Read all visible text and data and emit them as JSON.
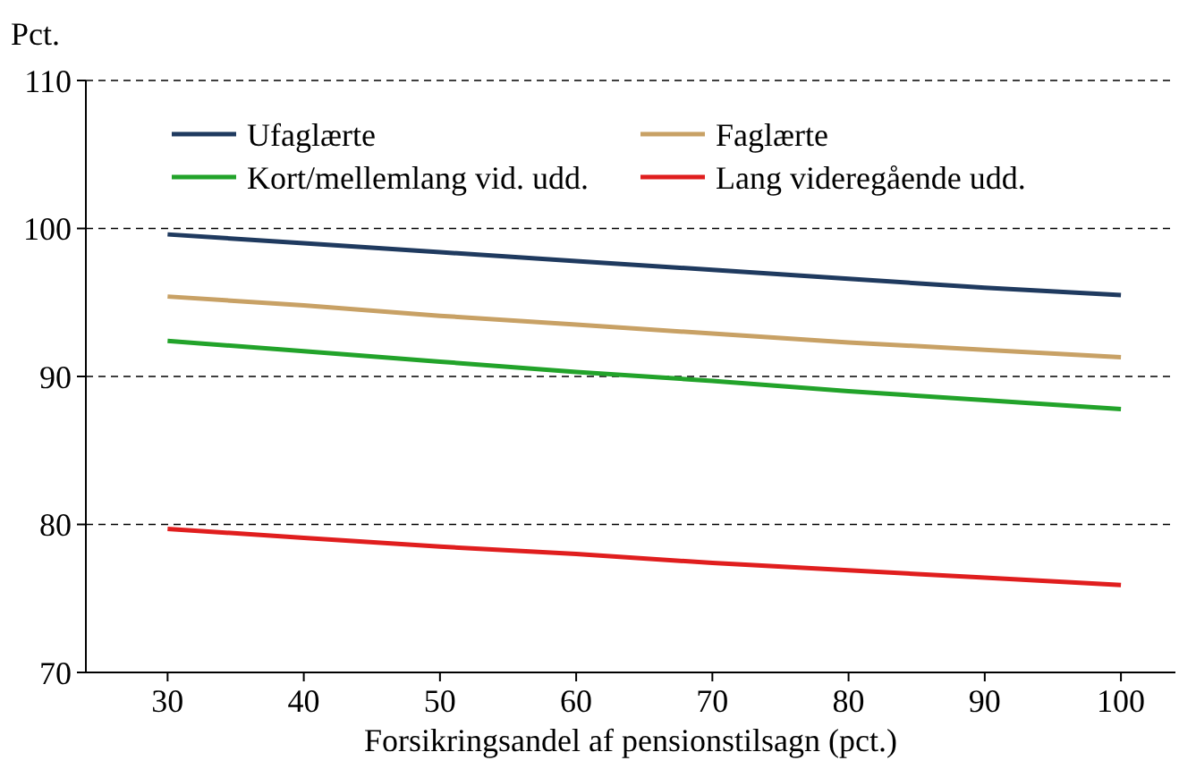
{
  "chart_data": {
    "type": "line",
    "ylabel": "Pct.",
    "xlabel": "Forsikringsandel af pensionstilsagn (pct.)",
    "x": [
      30,
      40,
      50,
      60,
      70,
      80,
      90,
      100
    ],
    "series": [
      {
        "name": "Ufaglærte",
        "color": "#1f3a5f",
        "values": [
          99.6,
          99.0,
          98.4,
          97.8,
          97.2,
          96.6,
          96.0,
          95.5
        ]
      },
      {
        "name": "Faglærte",
        "color": "#c8a165",
        "values": [
          95.4,
          94.8,
          94.1,
          93.5,
          92.9,
          92.3,
          91.8,
          91.3
        ]
      },
      {
        "name": "Kort/mellemlang vid. udd.",
        "color": "#22a32a",
        "values": [
          92.4,
          91.7,
          91.0,
          90.3,
          89.7,
          89.0,
          88.4,
          87.8
        ]
      },
      {
        "name": "Lang videregående udd.",
        "color": "#e01e1e",
        "values": [
          79.7,
          79.1,
          78.5,
          78.0,
          77.4,
          76.9,
          76.4,
          75.9
        ]
      }
    ],
    "xlim": [
      24,
      104
    ],
    "xticks": [
      30,
      40,
      50,
      60,
      70,
      80,
      90,
      100
    ],
    "ylim": [
      70,
      110
    ],
    "yticks": [
      70,
      80,
      90,
      100,
      110
    ],
    "grid": "y",
    "legend": "top",
    "marker": "none",
    "line_style": "solid"
  }
}
